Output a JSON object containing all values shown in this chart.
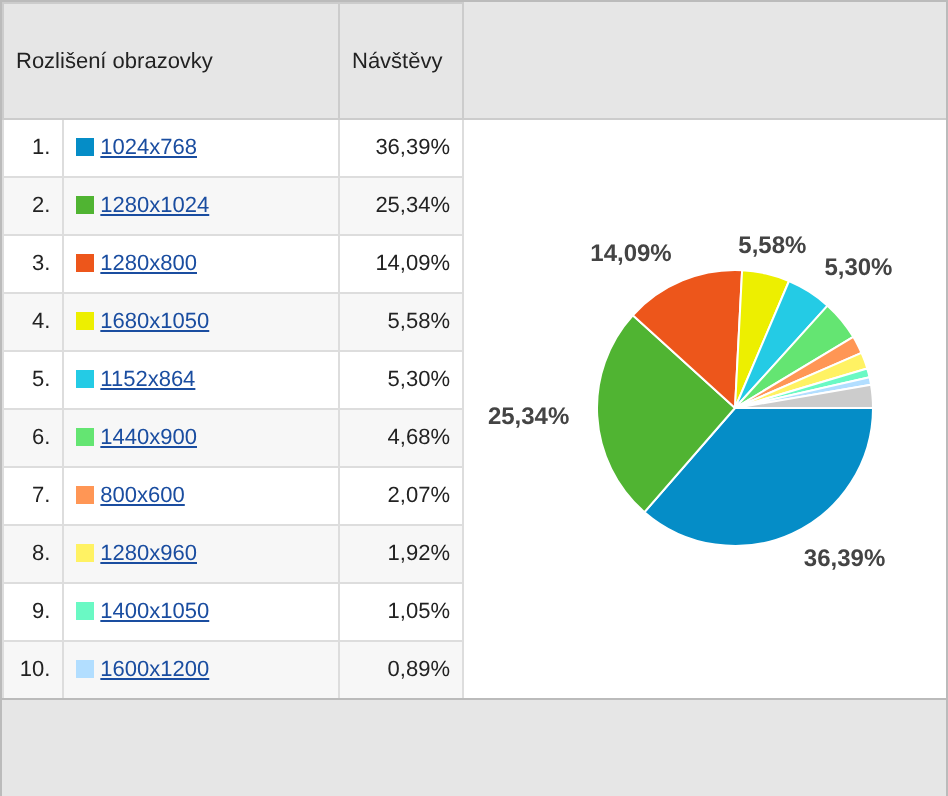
{
  "chart_data": {
    "type": "pie",
    "categories": [
      "1024x768",
      "1280x1024",
      "1280x800",
      "1680x1050",
      "1152x864",
      "1440x900",
      "800x600",
      "1280x960",
      "1400x1050",
      "1600x1200",
      null
    ],
    "values": [
      36.39,
      25.34,
      14.09,
      5.58,
      5.3,
      4.68,
      2.07,
      1.92,
      1.05,
      0.89,
      2.69
    ],
    "colors": [
      "#058dc7",
      "#50b432",
      "#ed561b",
      "#edef00",
      "#24cbe5",
      "#64e572",
      "#ff9655",
      "#fff263",
      "#6af9c4",
      "#b2deff",
      "#cccccc"
    ],
    "value_labels": [
      "36,39%",
      "25,34%",
      "14,09%",
      "5,58%",
      "5,30%",
      "4,68%",
      "2,07%",
      "1,92%",
      "1,05%",
      "0,89%",
      null
    ],
    "annotations": [
      "Rozlišení obrazovky",
      "Návštěvy",
      "1.",
      "2.",
      "3.",
      "4.",
      "5.",
      "6.",
      "7.",
      "8.",
      "9.",
      "10."
    ],
    "legend": "left"
  }
}
